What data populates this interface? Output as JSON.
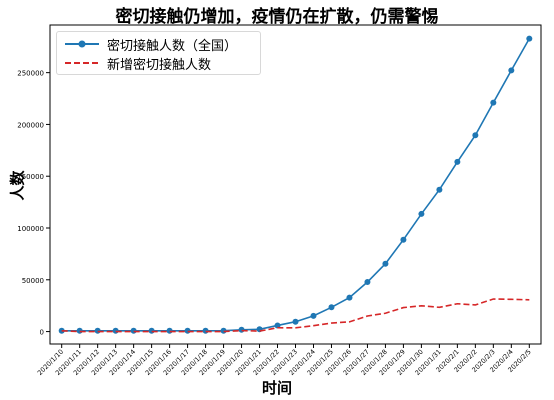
{
  "chart_data": {
    "type": "line",
    "title": "密切接触仍增加，疫情仍在扩散，仍需警惕",
    "xlabel": "时间",
    "ylabel": "人数",
    "x": [
      "2020/1/10",
      "2020/1/11",
      "2020/1/12",
      "2020/1/13",
      "2020/1/14",
      "2020/1/15",
      "2020/1/16",
      "2020/1/17",
      "2020/1/18",
      "2020/1/19",
      "2020/1/20",
      "2020/1/21",
      "2020/1/22",
      "2020/1/23",
      "2020/1/24",
      "2020/1/25",
      "2020/1/26",
      "2020/1/27",
      "2020/1/28",
      "2020/1/29",
      "2020/1/30",
      "2020/1/31",
      "2020/2/1",
      "2020/2/2",
      "2020/2/3",
      "2020/2/4",
      "2020/2/5"
    ],
    "ylim": [
      -12000,
      296000
    ],
    "yticks": [
      0,
      50000,
      100000,
      150000,
      200000,
      250000
    ],
    "ytick_labels": [
      "0",
      "50000",
      "100000",
      "150000",
      "200000",
      "250000"
    ],
    "series": [
      {
        "name": "密切接触人数（全国）",
        "color": "#1f77b4",
        "style": "solid-marker",
        "values": [
          739,
          763,
          763,
          763,
          763,
          763,
          763,
          763,
          763,
          817,
          1739,
          2197,
          5897,
          9507,
          15197,
          23431,
          32799,
          47833,
          65537,
          88693,
          113579,
          136987,
          163844,
          189583,
          221015,
          252154,
          282813
        ]
      },
      {
        "name": "新增密切接触人数",
        "color": "#d62728",
        "style": "dashed",
        "values": [
          739,
          24,
          0,
          0,
          0,
          0,
          0,
          0,
          0,
          54,
          922,
          458,
          3700,
          3610,
          5690,
          8234,
          9368,
          15034,
          17704,
          23156,
          24886,
          23408,
          26857,
          25739,
          31432,
          31139,
          30659
        ]
      }
    ],
    "legend_position": "top-left",
    "grid": false
  }
}
